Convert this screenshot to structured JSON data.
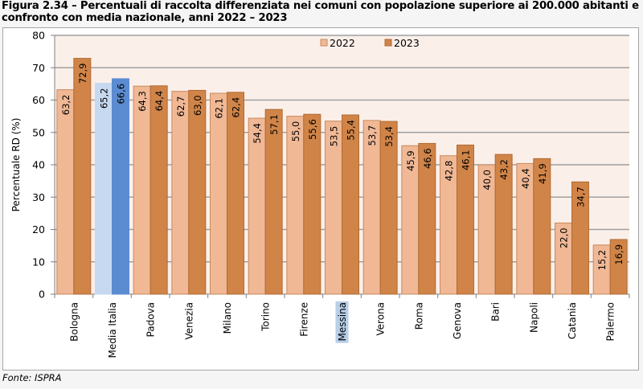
{
  "title_line1": "Figura 2.34 – Percentuali di raccolta differenziata nei comuni con popolazione superiore ai 200.000 abitanti e",
  "title_line2": "confronto con media nazionale, anni 2022 – 2023",
  "source": "Fonte: ISPRA",
  "colors": {
    "s2022": "#f0b895",
    "s2023": "#d08448",
    "s2022_border": "#c98a5e",
    "s2023_border": "#b06a30",
    "media2022": "#c6d9f0",
    "media2023": "#5b8bd0",
    "plot_bg": "#fbefea",
    "grid": "#a0a0a0",
    "highlight": "#b7cfe8"
  },
  "chart_data": {
    "type": "bar",
    "title": "Percentuali di raccolta differenziata nei comuni con popolazione superiore ai 200.000 abitanti e confronto con media nazionale, anni 2022 – 2023",
    "xlabel": "",
    "ylabel": "Percentuale RD (%)",
    "ylim": [
      0,
      80
    ],
    "yticks": [
      0,
      10,
      20,
      30,
      40,
      50,
      60,
      70,
      80
    ],
    "grid": true,
    "legend_position": "top-center",
    "categories": [
      "Bologna",
      "Media Italia",
      "Padova",
      "Venezia",
      "Milano",
      "Torino",
      "Firenze",
      "Messina",
      "Verona",
      "Roma",
      "Genova",
      "Bari",
      "Napoli",
      "Catania",
      "Palermo"
    ],
    "highlighted_category": "Messina",
    "special_category": "Media Italia",
    "series": [
      {
        "name": "2022",
        "values": [
          63.2,
          65.2,
          64.3,
          62.7,
          62.1,
          54.4,
          55.0,
          53.5,
          53.7,
          45.9,
          42.8,
          40.0,
          40.4,
          22.0,
          15.2
        ],
        "labels": [
          "63,2",
          "65,2",
          "64,3",
          "62,7",
          "62,1",
          "54,4",
          "55,0",
          "53,5",
          "53,7",
          "45,9",
          "42,8",
          "40,0",
          "40,4",
          "22,0",
          "15,2"
        ]
      },
      {
        "name": "2023",
        "values": [
          72.9,
          66.6,
          64.4,
          63.0,
          62.4,
          57.1,
          55.6,
          55.4,
          53.4,
          46.6,
          46.1,
          43.2,
          41.9,
          34.7,
          16.9
        ],
        "labels": [
          "72,9",
          "66,6",
          "64,4",
          "63,0",
          "62,4",
          "57,1",
          "55,6",
          "55,4",
          "53,4",
          "46,6",
          "46,1",
          "43,2",
          "41,9",
          "34,7",
          "16,9"
        ]
      }
    ]
  }
}
